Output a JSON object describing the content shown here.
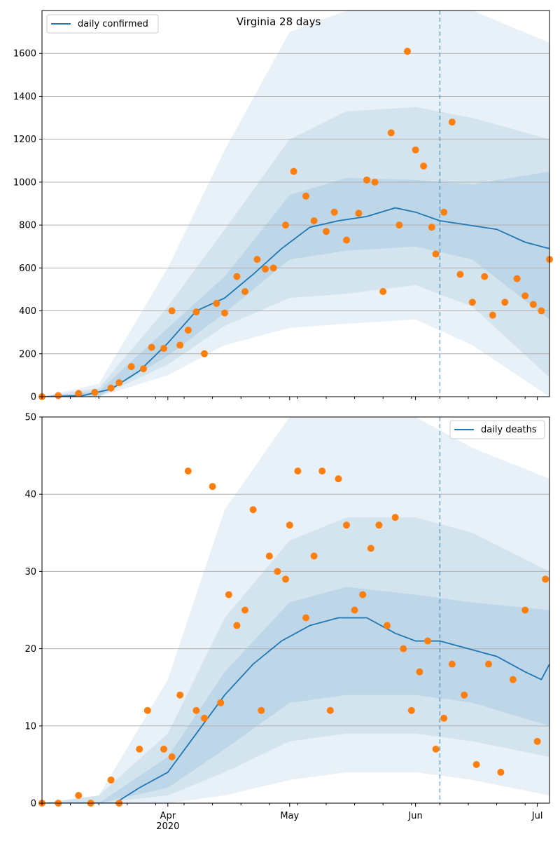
{
  "chart_data": [
    {
      "type": "line",
      "title": "Virginia 28 days",
      "xlabel": "",
      "ylabel": "",
      "ylim": [
        0,
        1800
      ],
      "yticks": [
        0,
        200,
        400,
        600,
        800,
        1000,
        1200,
        1400,
        1600
      ],
      "x_start": "2020-03-01",
      "x_end": "2020-07-04",
      "xticks": [
        {
          "date": "2020-04-01",
          "label": "Apr",
          "sublabel": "2020"
        },
        {
          "date": "2020-05-01",
          "label": "May",
          "sublabel": ""
        },
        {
          "date": "2020-06-01",
          "label": "Jun",
          "sublabel": ""
        },
        {
          "date": "2020-07-01",
          "label": "Jul",
          "sublabel": ""
        }
      ],
      "vline_date": "2020-06-07",
      "grid": true,
      "legend": "top-left",
      "colors": {
        "line": "#1f77b4",
        "points": "#ff7f0e",
        "band": "#1f77b4",
        "vline": "#1f77b4"
      },
      "series": [
        {
          "name": "daily confirmed",
          "kind": "line",
          "x": [
            "2020-03-01",
            "2020-03-11",
            "2020-03-18",
            "2020-03-25",
            "2020-04-01",
            "2020-04-08",
            "2020-04-15",
            "2020-04-22",
            "2020-04-29",
            "2020-05-06",
            "2020-05-13",
            "2020-05-20",
            "2020-05-27",
            "2020-06-01",
            "2020-06-07",
            "2020-06-14",
            "2020-06-21",
            "2020-06-28",
            "2020-07-04"
          ],
          "y": [
            0,
            5,
            35,
            120,
            250,
            400,
            460,
            570,
            690,
            790,
            820,
            840,
            880,
            860,
            820,
            800,
            780,
            720,
            690
          ]
        },
        {
          "kind": "points",
          "x": [
            "2020-03-01",
            "2020-03-05",
            "2020-03-10",
            "2020-03-14",
            "2020-03-18",
            "2020-03-20",
            "2020-03-23",
            "2020-03-26",
            "2020-03-28",
            "2020-03-31",
            "2020-04-02",
            "2020-04-04",
            "2020-04-06",
            "2020-04-08",
            "2020-04-10",
            "2020-04-13",
            "2020-04-15",
            "2020-04-18",
            "2020-04-20",
            "2020-04-23",
            "2020-04-25",
            "2020-04-27",
            "2020-04-30",
            "2020-05-02",
            "2020-05-05",
            "2020-05-07",
            "2020-05-10",
            "2020-05-12",
            "2020-05-15",
            "2020-05-18",
            "2020-05-20",
            "2020-05-22",
            "2020-05-24",
            "2020-05-26",
            "2020-05-28",
            "2020-05-30",
            "2020-06-01",
            "2020-06-03",
            "2020-06-05",
            "2020-06-06",
            "2020-06-08",
            "2020-06-10",
            "2020-06-12",
            "2020-06-15",
            "2020-06-18",
            "2020-06-20",
            "2020-06-23",
            "2020-06-26",
            "2020-06-28",
            "2020-06-30",
            "2020-07-02",
            "2020-07-04"
          ],
          "y": [
            0,
            5,
            15,
            20,
            40,
            65,
            140,
            130,
            230,
            225,
            400,
            240,
            310,
            395,
            200,
            435,
            390,
            560,
            490,
            640,
            595,
            600,
            800,
            1050,
            935,
            820,
            770,
            860,
            730,
            855,
            1010,
            1000,
            490,
            1230,
            800,
            1610,
            1150,
            1075,
            790,
            665,
            860,
            1280,
            570,
            440,
            560,
            380,
            440,
            550,
            470,
            430,
            400,
            640
          ]
        }
      ],
      "bands": [
        {
          "x": [
            "2020-03-01",
            "2020-03-15",
            "2020-04-01",
            "2020-04-15",
            "2020-05-01",
            "2020-05-15",
            "2020-06-01",
            "2020-06-15",
            "2020-07-04"
          ],
          "low": [
            0,
            0,
            100,
            240,
            320,
            340,
            360,
            240,
            0
          ],
          "high": [
            0,
            60,
            600,
            1150,
            1700,
            1800,
            1800,
            1800,
            1650
          ]
        },
        {
          "x": [
            "2020-03-01",
            "2020-03-15",
            "2020-04-01",
            "2020-04-15",
            "2020-05-01",
            "2020-05-15",
            "2020-06-01",
            "2020-06-15",
            "2020-07-04"
          ],
          "low": [
            0,
            0,
            150,
            330,
            460,
            480,
            520,
            420,
            90
          ],
          "high": [
            0,
            40,
            420,
            780,
            1200,
            1330,
            1350,
            1300,
            1200
          ]
        },
        {
          "x": [
            "2020-03-01",
            "2020-03-15",
            "2020-04-01",
            "2020-04-15",
            "2020-05-01",
            "2020-05-15",
            "2020-06-01",
            "2020-06-15",
            "2020-07-04"
          ],
          "low": [
            0,
            0,
            190,
            390,
            640,
            680,
            700,
            640,
            360
          ],
          "high": [
            0,
            25,
            320,
            560,
            940,
            1020,
            1010,
            990,
            1050
          ]
        }
      ]
    },
    {
      "type": "line",
      "title": "",
      "xlabel": "",
      "ylabel": "",
      "ylim": [
        0,
        50
      ],
      "yticks": [
        0,
        10,
        20,
        30,
        40,
        50
      ],
      "x_start": "2020-03-01",
      "x_end": "2020-07-04",
      "xticks": [
        {
          "date": "2020-04-01",
          "label": "Apr",
          "sublabel": "2020"
        },
        {
          "date": "2020-05-01",
          "label": "May",
          "sublabel": ""
        },
        {
          "date": "2020-06-01",
          "label": "Jun",
          "sublabel": ""
        },
        {
          "date": "2020-07-01",
          "label": "Jul",
          "sublabel": ""
        }
      ],
      "vline_date": "2020-06-07",
      "grid": true,
      "legend": "top-right",
      "colors": {
        "line": "#1f77b4",
        "points": "#ff7f0e",
        "band": "#1f77b4",
        "vline": "#1f77b4"
      },
      "series": [
        {
          "name": "daily deaths",
          "kind": "line",
          "x": [
            "2020-03-01",
            "2020-03-19",
            "2020-03-25",
            "2020-04-01",
            "2020-04-08",
            "2020-04-15",
            "2020-04-22",
            "2020-04-29",
            "2020-05-06",
            "2020-05-13",
            "2020-05-20",
            "2020-05-27",
            "2020-06-01",
            "2020-06-07",
            "2020-06-14",
            "2020-06-21",
            "2020-06-28",
            "2020-07-02",
            "2020-07-04"
          ],
          "y": [
            0,
            0,
            2,
            4,
            9,
            14,
            18,
            21,
            23,
            24,
            24,
            22,
            21,
            21,
            20,
            19,
            17,
            16,
            18
          ]
        },
        {
          "kind": "points",
          "x": [
            "2020-03-01",
            "2020-03-05",
            "2020-03-10",
            "2020-03-13",
            "2020-03-18",
            "2020-03-20",
            "2020-03-25",
            "2020-03-27",
            "2020-03-31",
            "2020-04-02",
            "2020-04-04",
            "2020-04-06",
            "2020-04-08",
            "2020-04-10",
            "2020-04-12",
            "2020-04-14",
            "2020-04-16",
            "2020-04-18",
            "2020-04-20",
            "2020-04-22",
            "2020-04-24",
            "2020-04-26",
            "2020-04-28",
            "2020-04-30",
            "2020-05-01",
            "2020-05-03",
            "2020-05-05",
            "2020-05-07",
            "2020-05-09",
            "2020-05-11",
            "2020-05-13",
            "2020-05-15",
            "2020-05-17",
            "2020-05-19",
            "2020-05-21",
            "2020-05-23",
            "2020-05-25",
            "2020-05-27",
            "2020-05-29",
            "2020-05-31",
            "2020-06-02",
            "2020-06-04",
            "2020-06-06",
            "2020-06-08",
            "2020-06-10",
            "2020-06-13",
            "2020-06-16",
            "2020-06-19",
            "2020-06-22",
            "2020-06-25",
            "2020-06-28",
            "2020-07-01",
            "2020-07-03"
          ],
          "y": [
            0,
            0,
            1,
            0,
            3,
            0,
            7,
            12,
            7,
            6,
            14,
            43,
            12,
            11,
            41,
            13,
            27,
            23,
            25,
            38,
            12,
            32,
            30,
            29,
            36,
            43,
            24,
            32,
            43,
            12,
            42,
            36,
            25,
            27,
            33,
            36,
            23,
            37,
            20,
            12,
            17,
            21,
            7,
            11,
            18,
            14,
            5,
            18,
            4,
            16,
            25,
            8,
            29
          ]
        }
      ],
      "bands": [
        {
          "x": [
            "2020-03-01",
            "2020-03-15",
            "2020-04-01",
            "2020-04-15",
            "2020-05-01",
            "2020-05-15",
            "2020-06-01",
            "2020-06-15",
            "2020-07-04"
          ],
          "low": [
            0,
            0,
            0,
            1,
            3,
            4,
            4,
            3,
            1
          ],
          "high": [
            0,
            1,
            16,
            38,
            50,
            50,
            50,
            46,
            42
          ]
        },
        {
          "x": [
            "2020-03-01",
            "2020-03-15",
            "2020-04-01",
            "2020-04-15",
            "2020-05-01",
            "2020-05-15",
            "2020-06-01",
            "2020-06-15",
            "2020-07-04"
          ],
          "low": [
            0,
            0,
            1,
            4,
            8,
            9,
            9,
            8,
            6
          ],
          "high": [
            0,
            1,
            9,
            24,
            34,
            37,
            37,
            35,
            30
          ]
        },
        {
          "x": [
            "2020-03-01",
            "2020-03-15",
            "2020-04-01",
            "2020-04-15",
            "2020-05-01",
            "2020-05-15",
            "2020-06-01",
            "2020-06-15",
            "2020-07-04"
          ],
          "low": [
            0,
            0,
            2,
            7,
            13,
            14,
            14,
            13,
            10
          ],
          "high": [
            0,
            0,
            6,
            17,
            26,
            28,
            27,
            26,
            25
          ]
        }
      ]
    }
  ]
}
